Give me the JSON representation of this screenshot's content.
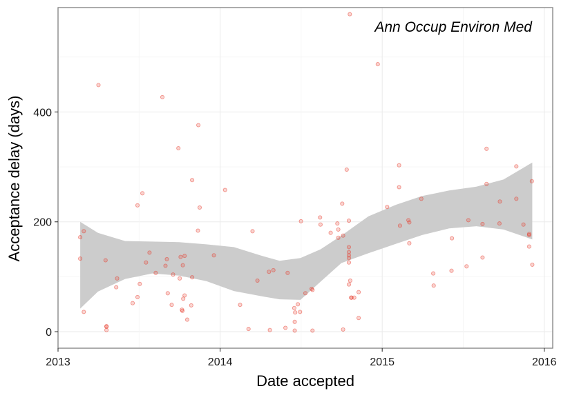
{
  "chart_data": {
    "type": "scatter",
    "title": "Ann Occup Environ Med",
    "xlabel": "Date accepted",
    "ylabel": "Acceptance delay (days)",
    "xlim": [
      "2013-01-01",
      "2016-01-20"
    ],
    "ylim": [
      -30,
      590
    ],
    "x_ticks": [
      "2013-01-01",
      "2014-01-01",
      "2015-01-01",
      "2016-01-01"
    ],
    "x_tick_labels": [
      "2013",
      "2014",
      "2015",
      "2016"
    ],
    "y_ticks": [
      0,
      200,
      400
    ],
    "y_tick_labels": [
      "0",
      "200",
      "400"
    ],
    "grid": true,
    "point_color": "#e8392b",
    "band_color": "#cccccc",
    "points": [
      {
        "x": "2013-02-20",
        "y": 172
      },
      {
        "x": "2013-02-20",
        "y": 133
      },
      {
        "x": "2013-02-28",
        "y": 183
      },
      {
        "x": "2013-02-28",
        "y": 36
      },
      {
        "x": "2013-04-02",
        "y": 449
      },
      {
        "x": "2013-04-18",
        "y": 130
      },
      {
        "x": "2013-04-20",
        "y": 10
      },
      {
        "x": "2013-04-20",
        "y": 9
      },
      {
        "x": "2013-04-20",
        "y": 3
      },
      {
        "x": "2013-05-12",
        "y": 81
      },
      {
        "x": "2013-05-14",
        "y": 97
      },
      {
        "x": "2013-06-18",
        "y": 52
      },
      {
        "x": "2013-06-29",
        "y": 63
      },
      {
        "x": "2013-06-29",
        "y": 230
      },
      {
        "x": "2013-07-04",
        "y": 87
      },
      {
        "x": "2013-07-10",
        "y": 252
      },
      {
        "x": "2013-07-18",
        "y": 126
      },
      {
        "x": "2013-07-26",
        "y": 144
      },
      {
        "x": "2013-08-09",
        "y": 107
      },
      {
        "x": "2013-08-24",
        "y": 427
      },
      {
        "x": "2013-08-31",
        "y": 120
      },
      {
        "x": "2013-09-03",
        "y": 132
      },
      {
        "x": "2013-09-05",
        "y": 70
      },
      {
        "x": "2013-09-14",
        "y": 49
      },
      {
        "x": "2013-09-17",
        "y": 104
      },
      {
        "x": "2013-09-29",
        "y": 334
      },
      {
        "x": "2013-10-02",
        "y": 97
      },
      {
        "x": "2013-10-04",
        "y": 136
      },
      {
        "x": "2013-10-07",
        "y": 40
      },
      {
        "x": "2013-10-08",
        "y": 38
      },
      {
        "x": "2013-10-09",
        "y": 121
      },
      {
        "x": "2013-10-10",
        "y": 60
      },
      {
        "x": "2013-10-13",
        "y": 66
      },
      {
        "x": "2013-10-13",
        "y": 138
      },
      {
        "x": "2013-10-19",
        "y": 22
      },
      {
        "x": "2013-10-28",
        "y": 48
      },
      {
        "x": "2013-10-30",
        "y": 276
      },
      {
        "x": "2013-10-30",
        "y": 99
      },
      {
        "x": "2013-11-12",
        "y": 184
      },
      {
        "x": "2013-11-13",
        "y": 376
      },
      {
        "x": "2013-11-16",
        "y": 226
      },
      {
        "x": "2013-12-18",
        "y": 139
      },
      {
        "x": "2014-01-12",
        "y": 258
      },
      {
        "x": "2014-02-15",
        "y": 49
      },
      {
        "x": "2014-03-06",
        "y": 5
      },
      {
        "x": "2014-03-15",
        "y": 183
      },
      {
        "x": "2014-03-26",
        "y": 93
      },
      {
        "x": "2014-04-21",
        "y": 109
      },
      {
        "x": "2014-04-23",
        "y": 3
      },
      {
        "x": "2014-05-01",
        "y": 112
      },
      {
        "x": "2014-05-28",
        "y": 7
      },
      {
        "x": "2014-06-02",
        "y": 107
      },
      {
        "x": "2014-06-17",
        "y": 43
      },
      {
        "x": "2014-06-18",
        "y": 2
      },
      {
        "x": "2014-06-18",
        "y": 18
      },
      {
        "x": "2014-06-19",
        "y": 35
      },
      {
        "x": "2014-06-25",
        "y": 50
      },
      {
        "x": "2014-06-30",
        "y": 36
      },
      {
        "x": "2014-07-02",
        "y": 201
      },
      {
        "x": "2014-07-12",
        "y": 70
      },
      {
        "x": "2014-07-26",
        "y": 78
      },
      {
        "x": "2014-07-28",
        "y": 76
      },
      {
        "x": "2014-07-28",
        "y": 2
      },
      {
        "x": "2014-08-14",
        "y": 208
      },
      {
        "x": "2014-08-15",
        "y": 195
      },
      {
        "x": "2014-09-07",
        "y": 180
      },
      {
        "x": "2014-09-22",
        "y": 197
      },
      {
        "x": "2014-09-24",
        "y": 186
      },
      {
        "x": "2014-09-24",
        "y": 171
      },
      {
        "x": "2014-10-03",
        "y": 233
      },
      {
        "x": "2014-10-05",
        "y": 175
      },
      {
        "x": "2014-10-05",
        "y": 4
      },
      {
        "x": "2014-10-13",
        "y": 295
      },
      {
        "x": "2014-10-18",
        "y": 202
      },
      {
        "x": "2014-10-18",
        "y": 154
      },
      {
        "x": "2014-10-18",
        "y": 145
      },
      {
        "x": "2014-10-18",
        "y": 139
      },
      {
        "x": "2014-10-18",
        "y": 134
      },
      {
        "x": "2014-10-18",
        "y": 126
      },
      {
        "x": "2014-10-18",
        "y": 86
      },
      {
        "x": "2014-10-20",
        "y": 578
      },
      {
        "x": "2014-10-21",
        "y": 93
      },
      {
        "x": "2014-10-23",
        "y": 62
      },
      {
        "x": "2014-10-24",
        "y": 62
      },
      {
        "x": "2014-10-30",
        "y": 62
      },
      {
        "x": "2014-11-09",
        "y": 25
      },
      {
        "x": "2014-11-09",
        "y": 72
      },
      {
        "x": "2014-12-22",
        "y": 487
      },
      {
        "x": "2015-01-12",
        "y": 227
      },
      {
        "x": "2015-02-08",
        "y": 303
      },
      {
        "x": "2015-02-08",
        "y": 263
      },
      {
        "x": "2015-02-10",
        "y": 193
      },
      {
        "x": "2015-03-01",
        "y": 203
      },
      {
        "x": "2015-03-03",
        "y": 199
      },
      {
        "x": "2015-03-03",
        "y": 161
      },
      {
        "x": "2015-03-30",
        "y": 242
      },
      {
        "x": "2015-04-26",
        "y": 106
      },
      {
        "x": "2015-04-27",
        "y": 84
      },
      {
        "x": "2015-06-06",
        "y": 111
      },
      {
        "x": "2015-06-07",
        "y": 170
      },
      {
        "x": "2015-07-10",
        "y": 119
      },
      {
        "x": "2015-07-14",
        "y": 203
      },
      {
        "x": "2015-08-15",
        "y": 196
      },
      {
        "x": "2015-08-15",
        "y": 135
      },
      {
        "x": "2015-08-24",
        "y": 333
      },
      {
        "x": "2015-08-24",
        "y": 269
      },
      {
        "x": "2015-09-22",
        "y": 197
      },
      {
        "x": "2015-09-23",
        "y": 237
      },
      {
        "x": "2015-10-30",
        "y": 301
      },
      {
        "x": "2015-10-30",
        "y": 242
      },
      {
        "x": "2015-11-15",
        "y": 195
      },
      {
        "x": "2015-11-28",
        "y": 178
      },
      {
        "x": "2015-11-28",
        "y": 176
      },
      {
        "x": "2015-11-28",
        "y": 155
      },
      {
        "x": "2015-12-04",
        "y": 274
      },
      {
        "x": "2015-12-05",
        "y": 122
      }
    ],
    "confidence_band": {
      "x": [
        "2013-02-20",
        "2013-04-01",
        "2013-06-01",
        "2013-08-01",
        "2013-10-01",
        "2013-12-01",
        "2014-02-01",
        "2014-04-01",
        "2014-05-15",
        "2014-07-01",
        "2014-08-15",
        "2014-10-01",
        "2014-12-01",
        "2015-02-01",
        "2015-04-01",
        "2015-06-01",
        "2015-08-01",
        "2015-10-01",
        "2015-12-05"
      ],
      "upper": [
        200,
        180,
        165,
        164,
        163,
        159,
        154,
        139,
        129,
        134,
        150,
        175,
        210,
        231,
        247,
        257,
        264,
        277,
        308
      ],
      "lower": [
        42,
        73,
        96,
        106,
        102,
        92,
        74,
        65,
        59,
        58,
        91,
        125,
        143,
        160,
        176,
        188,
        192,
        186,
        168
      ]
    }
  }
}
